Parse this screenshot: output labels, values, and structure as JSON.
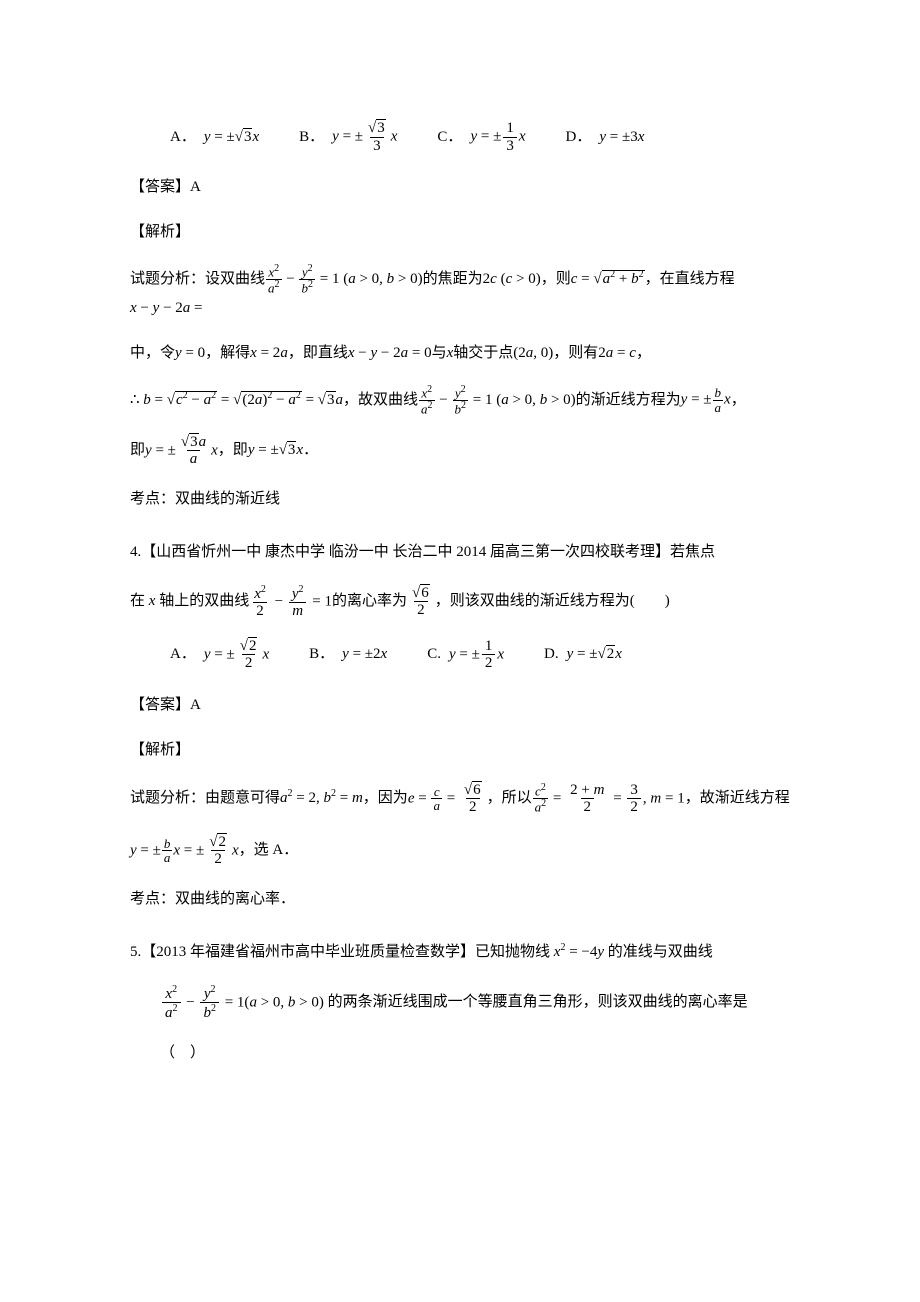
{
  "q3": {
    "options": {
      "A_label": "A．",
      "B_label": "B．",
      "C_label": "C．",
      "D_label": "D．"
    },
    "answer_label": "【答案】A",
    "analysis_label": "【解析】",
    "line1_p1": "试题分析：设双曲线",
    "line1_p2": "的焦距为",
    "line1_p3": "，则",
    "line1_p4": "，在直线方程",
    "line2_p1": "中，令",
    "line2_p2": "，解得",
    "line2_p3": "，即直线",
    "line2_p4": "与",
    "line2_p5": "轴交于点",
    "line2_p6": "，则有",
    "line2_p7": "，",
    "line3_p1": "，故双曲线",
    "line3_p2": "的渐近线方程为",
    "line3_p3": "，",
    "line4_p1": "即",
    "line4_p2": "，即",
    "line4_p3": "．",
    "topic": "考点：双曲线的渐近线"
  },
  "q4": {
    "number": "4.",
    "source": "【山西省忻州一中 康杰中学 临汾一中 长治二中 2014 届高三第一次四校联考理】若焦点",
    "cont_p1": "在",
    "cont_p2": "轴上的双曲线",
    "cont_p3": "的离心率为",
    "cont_p4": "，则该双曲线的渐近线方程为(　　)",
    "options": {
      "A_label": "A．",
      "B_label": "B．",
      "C_label": "C.",
      "D_label": "D."
    },
    "answer_label": "【答案】A",
    "analysis_label": "【解析】",
    "line1_p1": "试题分析：由题意可得",
    "line1_p2": "，因为",
    "line1_p3": "，所以",
    "line1_p4": "，故渐近线方程",
    "line2_p1": "，选 A．",
    "topic": "考点：双曲线的离心率．"
  },
  "q5": {
    "number": "5.",
    "source_p1": "【2013 年福建省福州市高中毕业班质量检查数学】已知抛物线",
    "source_p2": "的准线与双曲线",
    "cont_p1": "的两条渐近线围成一个等腰直角三角形，则该双曲线的离心率是",
    "paren": "（　）"
  },
  "colors": {
    "text": "#000000",
    "background": "#ffffff"
  },
  "typography": {
    "body_fontsize": 15,
    "body_font": "SimSun",
    "math_font": "Times New Roman"
  }
}
